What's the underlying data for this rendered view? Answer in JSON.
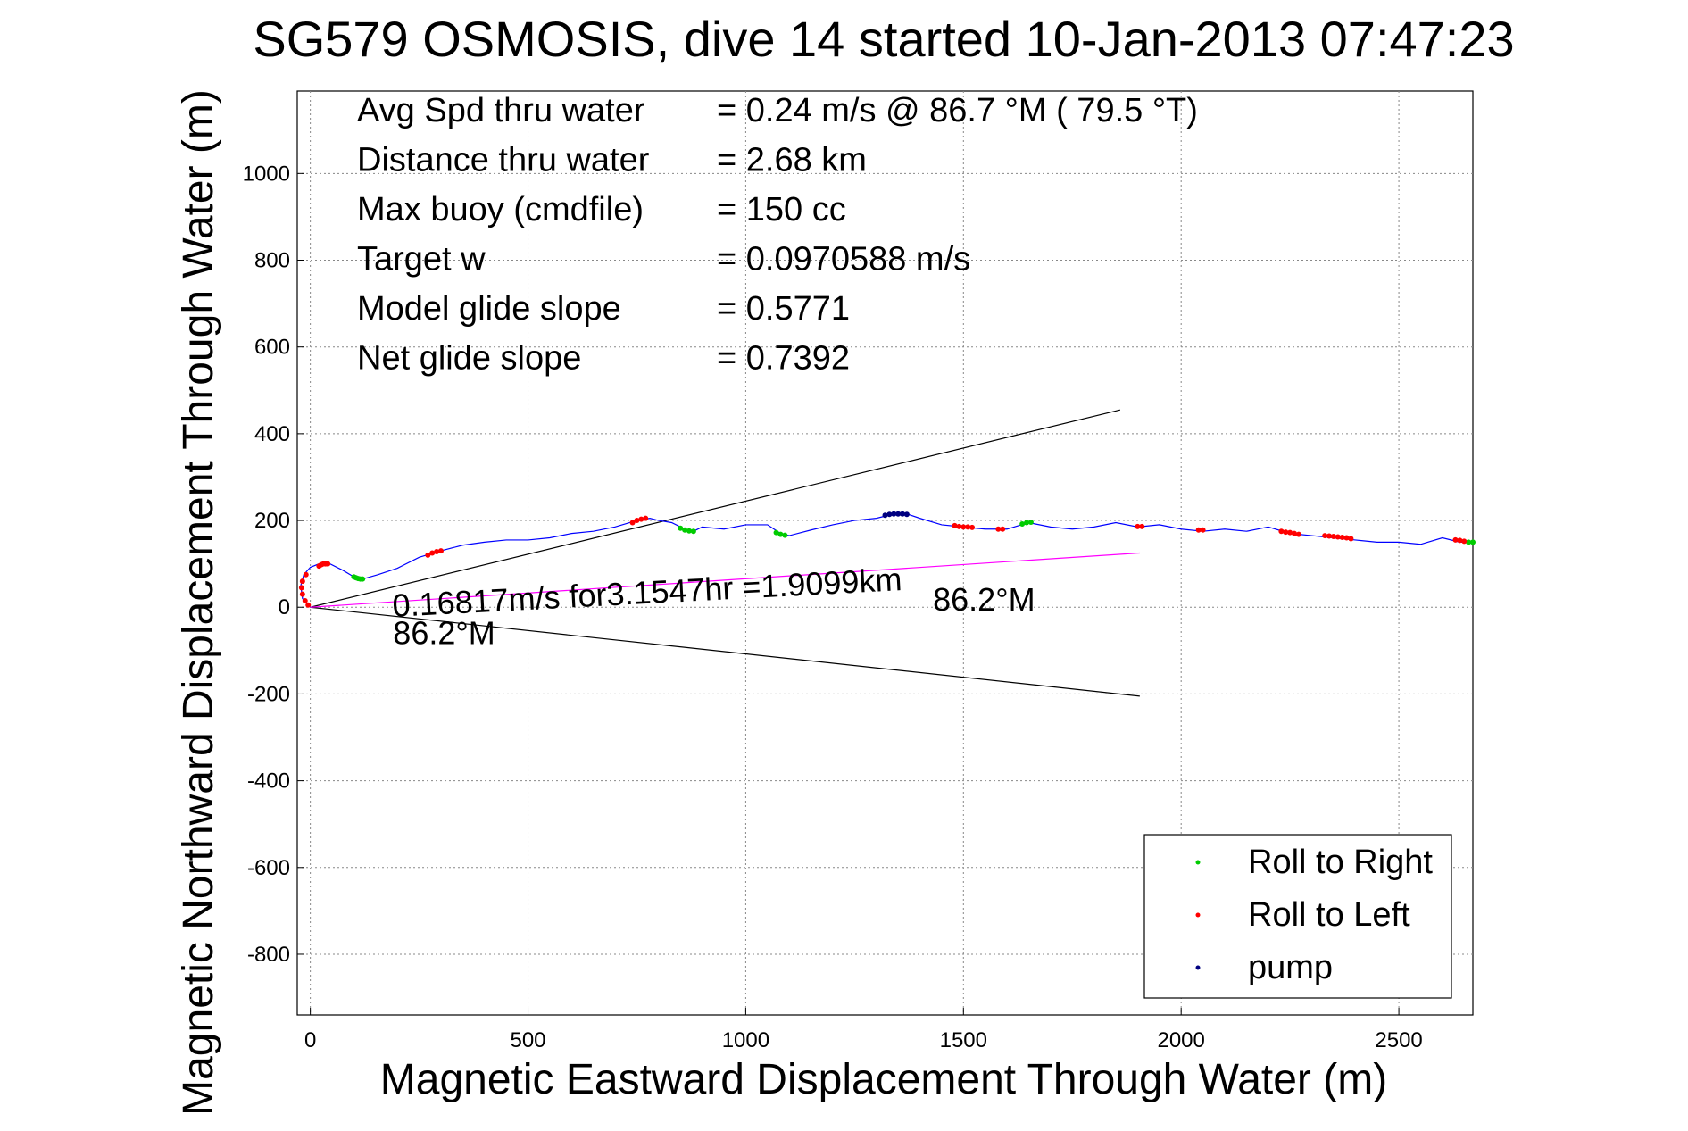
{
  "chart_data": {
    "type": "line",
    "title": "SG579 OSMOSIS, dive 14 started 10-Jan-2013 07:47:23",
    "xlabel": "Magnetic Eastward Displacement Through Water (m)",
    "ylabel": "Magnetic Northward Displacement Through Water (m)",
    "xlim": [
      -30,
      2670
    ],
    "ylim": [
      -940,
      1190
    ],
    "xticks": [
      0,
      500,
      1000,
      1500,
      2000,
      2500
    ],
    "yticks": [
      -800,
      -600,
      -400,
      -200,
      0,
      200,
      400,
      600,
      800,
      1000
    ],
    "grid": true,
    "info": [
      {
        "label": "Avg Spd thru water",
        "value": "=  0.24 m/s @  86.7 °M ( 79.5 °T)"
      },
      {
        "label": "Distance thru water",
        "value": "=  2.68 km"
      },
      {
        "label": "Max buoy (cmdfile)",
        "value": "= 150 cc"
      },
      {
        "label": "Target w",
        "value": "= 0.0970588 m/s"
      },
      {
        "label": "Model glide slope",
        "value": "= 0.5771"
      },
      {
        "label": "Net glide slope",
        "value": "= 0.7392"
      }
    ],
    "annotations": [
      {
        "text": "0.16817m/s for3.1547hr =1.9099km",
        "x": 190,
        "y": -22,
        "rotate": -3
      },
      {
        "text": "86.2°M",
        "x": 190,
        "y": -85,
        "rotate": 0
      },
      {
        "text": "86.2°M",
        "x": 1430,
        "y": -8,
        "rotate": 0
      }
    ],
    "reference_lines": [
      {
        "name": "upper-bound",
        "color": "#000000",
        "x": [
          0,
          1860
        ],
        "y": [
          0,
          455
        ]
      },
      {
        "name": "lower-bound",
        "color": "#000000",
        "x": [
          0,
          1905
        ],
        "y": [
          0,
          -205
        ]
      },
      {
        "name": "net-track",
        "color": "#ff00ff",
        "x": [
          0,
          1905
        ],
        "y": [
          0,
          125
        ]
      }
    ],
    "series": [
      {
        "name": "track",
        "color": "#0000ff",
        "x": [
          0,
          -18,
          -22,
          -15,
          0,
          20,
          45,
          75,
          100,
          120,
          155,
          200,
          250,
          300,
          350,
          400,
          450,
          500,
          550,
          600,
          650,
          700,
          750,
          780,
          800,
          830,
          860,
          880,
          900,
          950,
          1000,
          1050,
          1080,
          1100,
          1150,
          1200,
          1250,
          1300,
          1340,
          1370,
          1400,
          1450,
          1500,
          1550,
          1600,
          1650,
          1700,
          1750,
          1800,
          1850,
          1900,
          1950,
          2000,
          2050,
          2100,
          2150,
          2200,
          2250,
          2300,
          2350,
          2400,
          2450,
          2500,
          2550,
          2600,
          2640,
          2670
        ],
        "y": [
          0,
          20,
          50,
          75,
          92,
          100,
          100,
          85,
          70,
          65,
          75,
          90,
          115,
          130,
          143,
          150,
          155,
          155,
          160,
          170,
          175,
          185,
          200,
          205,
          200,
          195,
          180,
          175,
          185,
          180,
          190,
          190,
          170,
          165,
          178,
          190,
          200,
          205,
          215,
          215,
          205,
          190,
          185,
          180,
          180,
          195,
          185,
          180,
          185,
          195,
          185,
          190,
          180,
          175,
          180,
          175,
          185,
          170,
          165,
          160,
          155,
          150,
          150,
          145,
          160,
          150,
          150
        ]
      }
    ],
    "marker_segments": {
      "roll_right": {
        "color": "#00cc00",
        "x": [
          100,
          105,
          110,
          115,
          120,
          850,
          860,
          870,
          880,
          1070,
          1080,
          1090,
          1635,
          1645,
          1655,
          2660,
          2670
        ],
        "y": [
          70,
          68,
          66,
          65,
          65,
          182,
          178,
          176,
          175,
          172,
          168,
          166,
          192,
          195,
          196,
          150,
          150
        ]
      },
      "roll_left": {
        "color": "#ff0000",
        "x": [
          -5,
          -12,
          -18,
          -20,
          -18,
          -10,
          20,
          25,
          30,
          35,
          40,
          270,
          280,
          290,
          300,
          740,
          750,
          760,
          770,
          1480,
          1490,
          1500,
          1510,
          1520,
          1580,
          1590,
          1900,
          1910,
          2040,
          2050,
          2230,
          2240,
          2250,
          2260,
          2270,
          2330,
          2340,
          2350,
          2360,
          2370,
          2380,
          2390,
          2630,
          2640,
          2650
        ],
        "y": [
          5,
          15,
          30,
          45,
          60,
          75,
          95,
          98,
          100,
          100,
          100,
          120,
          125,
          128,
          130,
          195,
          200,
          203,
          205,
          188,
          186,
          185,
          185,
          184,
          180,
          180,
          186,
          186,
          178,
          178,
          175,
          173,
          172,
          170,
          168,
          165,
          164,
          163,
          162,
          161,
          160,
          158,
          155,
          154,
          152
        ]
      },
      "pump": {
        "color": "#000080",
        "x": [
          1320,
          1330,
          1340,
          1350,
          1360,
          1370
        ],
        "y": [
          212,
          214,
          215,
          215,
          215,
          214
        ]
      }
    },
    "legend": {
      "position": "bottom-right",
      "entries": [
        {
          "name": "Roll to Right",
          "color": "#00cc00"
        },
        {
          "name": "Roll to Left",
          "color": "#ff0000"
        },
        {
          "name": "pump",
          "color": "#000080"
        }
      ]
    }
  }
}
